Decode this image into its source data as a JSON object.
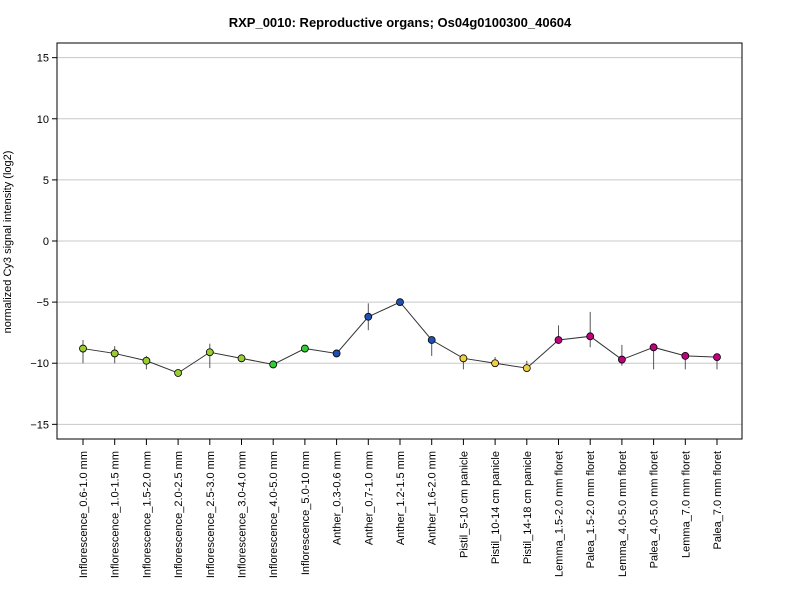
{
  "chart_data": {
    "type": "line",
    "title": "RXP_0010: Reproductive organs; Os04g0100300_40604",
    "xlabel": "",
    "ylabel": "normalized Cy3 signal intensity (log2)",
    "ylim": [
      -16.2,
      16.2
    ],
    "yticks": [
      -15,
      -10,
      -5,
      0,
      5,
      10,
      15
    ],
    "grid": true,
    "categories": [
      "Inflorescence_0.6-1.0 mm",
      "Inflorescence_1.0-1.5 mm",
      "Inflorescence_1.5-2.0 mm",
      "Inflorescence_2.0-2.5 mm",
      "Inflorescence_2.5-3.0 mm",
      "Inflorescence_3.0-4.0 mm",
      "Inflorescence_4.0-5.0 mm",
      "Inflorescence_5.0-10 mm",
      "Anther_0.3-0.6 mm",
      "Anther_0.7-1.0 mm",
      "Anther_1.2-1.5 mm",
      "Anther_1.6-2.0 mm",
      "Pistil_5-10 cm panicle",
      "Pistil_10-14 cm panicle",
      "Pistil_14-18 cm panicle",
      "Lemma_1.5-2.0 mm floret",
      "Palea_1.5-2.0 mm floret",
      "Lemma_4.0-5.0 mm floret",
      "Palea_4.0-5.0 mm floret",
      "Lemma_7.0 mm floret",
      "Palea_7.0 mm floret"
    ],
    "values": [
      -8.8,
      -9.2,
      -9.8,
      -10.8,
      -9.1,
      -9.6,
      -10.1,
      -8.8,
      -9.2,
      -6.2,
      -5.0,
      -8.1,
      -9.6,
      -10.0,
      -10.4,
      -8.1,
      -7.8,
      -9.7,
      -8.7,
      -9.4,
      -9.5
    ],
    "error_low": [
      -10.0,
      -10.0,
      -10.5,
      -10.9,
      -10.4,
      -9.8,
      -10.4,
      -8.9,
      -9.3,
      -7.3,
      -5.2,
      -9.4,
      -10.5,
      -10.3,
      -10.6,
      -8.4,
      -8.7,
      -10.2,
      -10.5,
      -10.5,
      -10.5
    ],
    "error_high": [
      -8.1,
      -8.6,
      -9.4,
      -10.6,
      -8.4,
      -9.4,
      -9.8,
      -8.6,
      -9.1,
      -5.1,
      -4.8,
      -7.8,
      -9.3,
      -9.5,
      -9.8,
      -6.9,
      -5.8,
      -8.5,
      -8.4,
      -9.1,
      -9.3
    ],
    "point_colors": [
      "#9acd32",
      "#9acd32",
      "#9acd32",
      "#9acd32",
      "#9acd32",
      "#9acd32",
      "#32cd32",
      "#32cd32",
      "#1f4fb5",
      "#1f4fb5",
      "#1f4fb5",
      "#1f4fb5",
      "#f0d040",
      "#f0d040",
      "#f0d040",
      "#c0007f",
      "#c0007f",
      "#c0007f",
      "#c0007f",
      "#c0007f",
      "#c0007f"
    ],
    "line_color": "#333333",
    "grid_color": "#c8c8c8"
  }
}
